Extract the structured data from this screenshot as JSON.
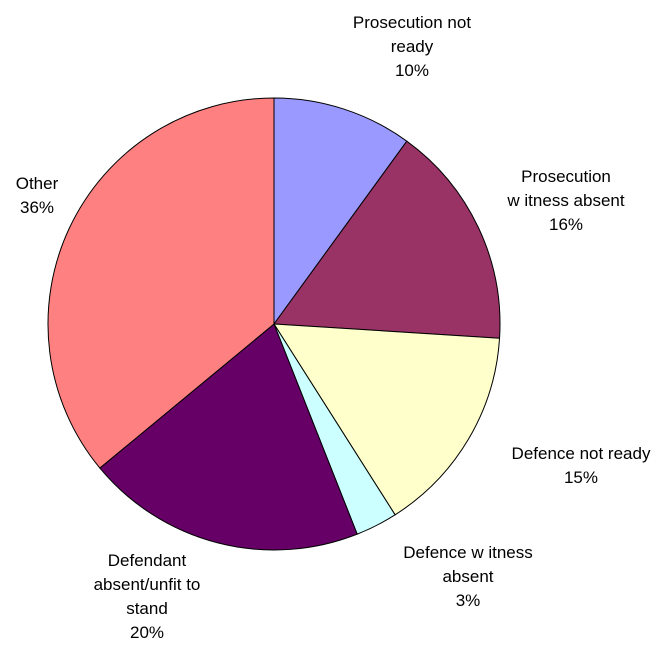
{
  "chart_data": {
    "type": "pie",
    "title": "",
    "slices": [
      {
        "label_lines": [
          "Prosecution not",
          "ready"
        ],
        "percent_text": "10%",
        "value": 10,
        "color": "#9999ff"
      },
      {
        "label_lines": [
          "Prosecution",
          "w itness absent"
        ],
        "percent_text": "16%",
        "value": 16,
        "color": "#993366"
      },
      {
        "label_lines": [
          "Defence not ready"
        ],
        "percent_text": "15%",
        "value": 15,
        "color": "#ffffcc"
      },
      {
        "label_lines": [
          "Defence w itness",
          "absent"
        ],
        "percent_text": "3%",
        "value": 3,
        "color": "#ccffff"
      },
      {
        "label_lines": [
          "Defendant",
          "absent/unfit to",
          "stand"
        ],
        "percent_text": "20%",
        "value": 20,
        "color": "#660066"
      },
      {
        "label_lines": [
          "Other"
        ],
        "percent_text": "36%",
        "value": 36,
        "color": "#ff8080"
      }
    ],
    "legend": "none",
    "start_angle": "12 o'clock",
    "direction": "clockwise"
  }
}
